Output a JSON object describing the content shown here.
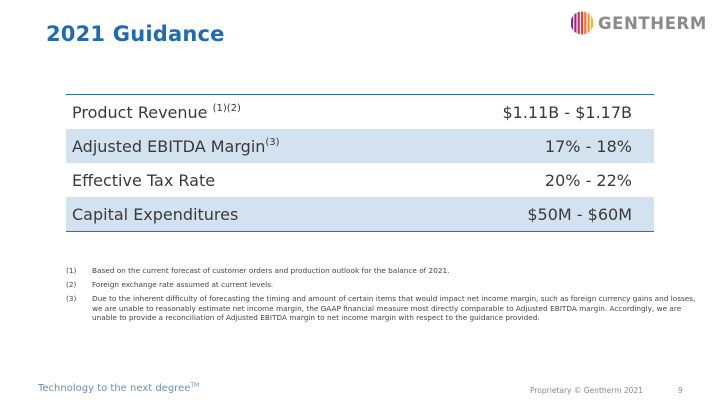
{
  "slide": {
    "title": "2021 Guidance",
    "logo": {
      "text": "GENTHERM",
      "icon": "gentherm-logo-icon",
      "color": "#8a8a8c",
      "accent": "#e9742e"
    }
  },
  "table": {
    "rows": [
      {
        "label": "Product Revenue ",
        "sup": "(1)(2)",
        "value": "$1.11B - $1.17B",
        "shaded": false
      },
      {
        "label": "Adjusted EBITDA Margin",
        "sup": "(3)",
        "value": "17% - 18%",
        "shaded": true
      },
      {
        "label": "Effective Tax Rate",
        "sup": "",
        "value": "20% - 22%",
        "shaded": false
      },
      {
        "label": "Capital Expenditures",
        "sup": "",
        "value": "$50M - $60M",
        "shaded": true
      }
    ],
    "shade_color": "#d3e2ef",
    "rule_color": "#2d6eb0"
  },
  "notes": [
    {
      "num": "(1)",
      "text": "Based on the current forecast of customer orders and production outlook for the balance of 2021."
    },
    {
      "num": "(2)",
      "text": "Foreign exchange rate assumed at current levels."
    },
    {
      "num": "(3)",
      "text": "Due to the inherent difficulty of forecasting the timing and amount of certain items that would impact net income margin, such as foreign currency gains and losses, we are unable to reasonably estimate net income margin, the GAAP financial measure most directly comparable to Adjusted EBITDA margin. Accordingly, we are unable to provide a reconciliation of Adjusted EBITDA margin to net income margin with respect to the guidance provided."
    }
  ],
  "footer": {
    "tagline": "Technology to the next degree",
    "tagline_mark": "TM",
    "copyright": "Proprietary © Gentherm 2021",
    "page_number": "9"
  },
  "colors": {
    "title": "#1e6ab3",
    "tagline": "#6e8fb2"
  }
}
